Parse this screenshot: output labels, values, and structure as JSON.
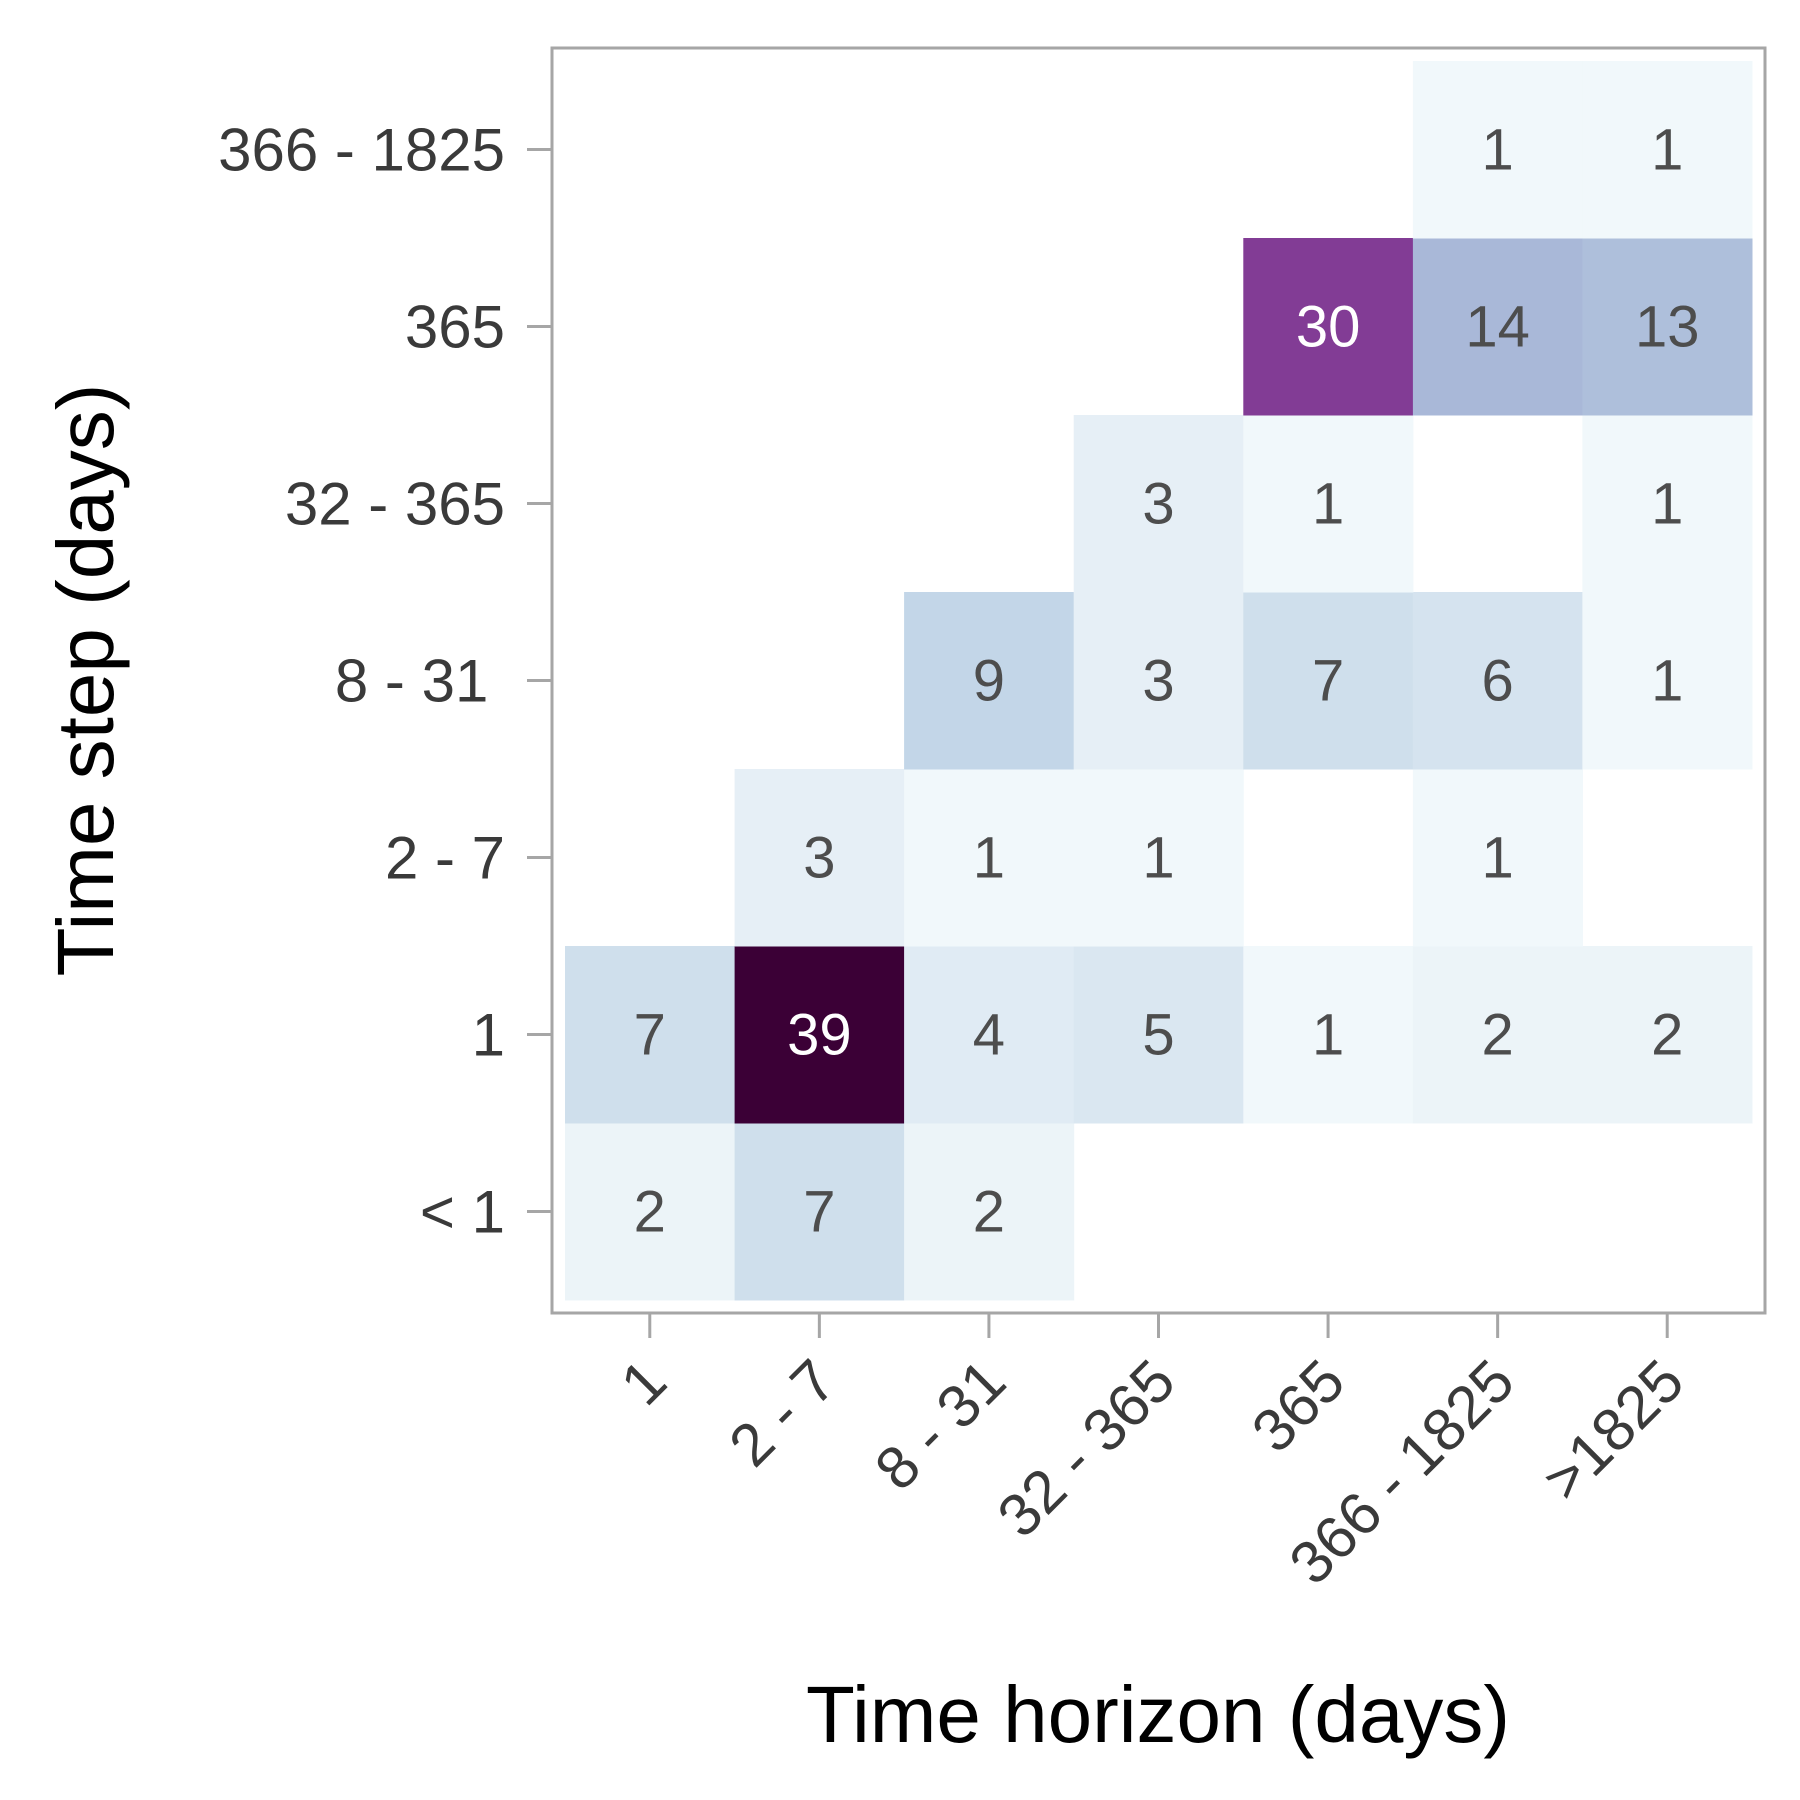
{
  "chart_data": {
    "type": "heatmap",
    "xlabel": "Time horizon (days)",
    "ylabel": "Time step (days)",
    "x_categories": [
      "1",
      "2 - 7",
      "8 - 31",
      "32 - 365",
      "365",
      "366 - 1825",
      ">1825"
    ],
    "y_categories": [
      "< 1",
      "1",
      "2 - 7",
      "8 - 31 ",
      "32 - 365",
      "365",
      "366 - 1825"
    ],
    "cells": [
      {
        "x": "1",
        "y": "< 1",
        "value": 2
      },
      {
        "x": "2 - 7",
        "y": "< 1",
        "value": 7
      },
      {
        "x": "8 - 31",
        "y": "< 1",
        "value": 2
      },
      {
        "x": "1",
        "y": "1",
        "value": 7
      },
      {
        "x": "2 - 7",
        "y": "1",
        "value": 39
      },
      {
        "x": "8 - 31",
        "y": "1",
        "value": 4
      },
      {
        "x": "32 - 365",
        "y": "1",
        "value": 5
      },
      {
        "x": "365",
        "y": "1",
        "value": 1
      },
      {
        "x": "366 - 1825",
        "y": "1",
        "value": 2
      },
      {
        "x": ">1825",
        "y": "1",
        "value": 2
      },
      {
        "x": "2 - 7",
        "y": "2 - 7",
        "value": 3
      },
      {
        "x": "8 - 31",
        "y": "2 - 7",
        "value": 1
      },
      {
        "x": "32 - 365",
        "y": "2 - 7",
        "value": 1
      },
      {
        "x": "366 - 1825",
        "y": "2 - 7",
        "value": 1
      },
      {
        "x": "8 - 31",
        "y": "8 - 31 ",
        "value": 9
      },
      {
        "x": "32 - 365",
        "y": "8 - 31 ",
        "value": 3
      },
      {
        "x": "365",
        "y": "8 - 31 ",
        "value": 7
      },
      {
        "x": "366 - 1825",
        "y": "8 - 31 ",
        "value": 6
      },
      {
        "x": ">1825",
        "y": "8 - 31 ",
        "value": 1
      },
      {
        "x": "32 - 365",
        "y": "32 - 365",
        "value": 3
      },
      {
        "x": "365",
        "y": "32 - 365",
        "value": 1
      },
      {
        "x": ">1825",
        "y": "32 - 365",
        "value": 1
      },
      {
        "x": "365",
        "y": "365",
        "value": 30
      },
      {
        "x": "366 - 1825",
        "y": "365",
        "value": 14
      },
      {
        "x": ">1825",
        "y": "365",
        "value": 13
      },
      {
        "x": "366 - 1825",
        "y": "366 - 1825",
        "value": 1
      },
      {
        "x": ">1825",
        "y": "366 - 1825",
        "value": 1
      }
    ],
    "color_scale": [
      "#f7fcfd",
      "#bfd3e6",
      "#8c96c6",
      "#88419d",
      "#3b0036"
    ],
    "grid": false,
    "legend": "none"
  }
}
